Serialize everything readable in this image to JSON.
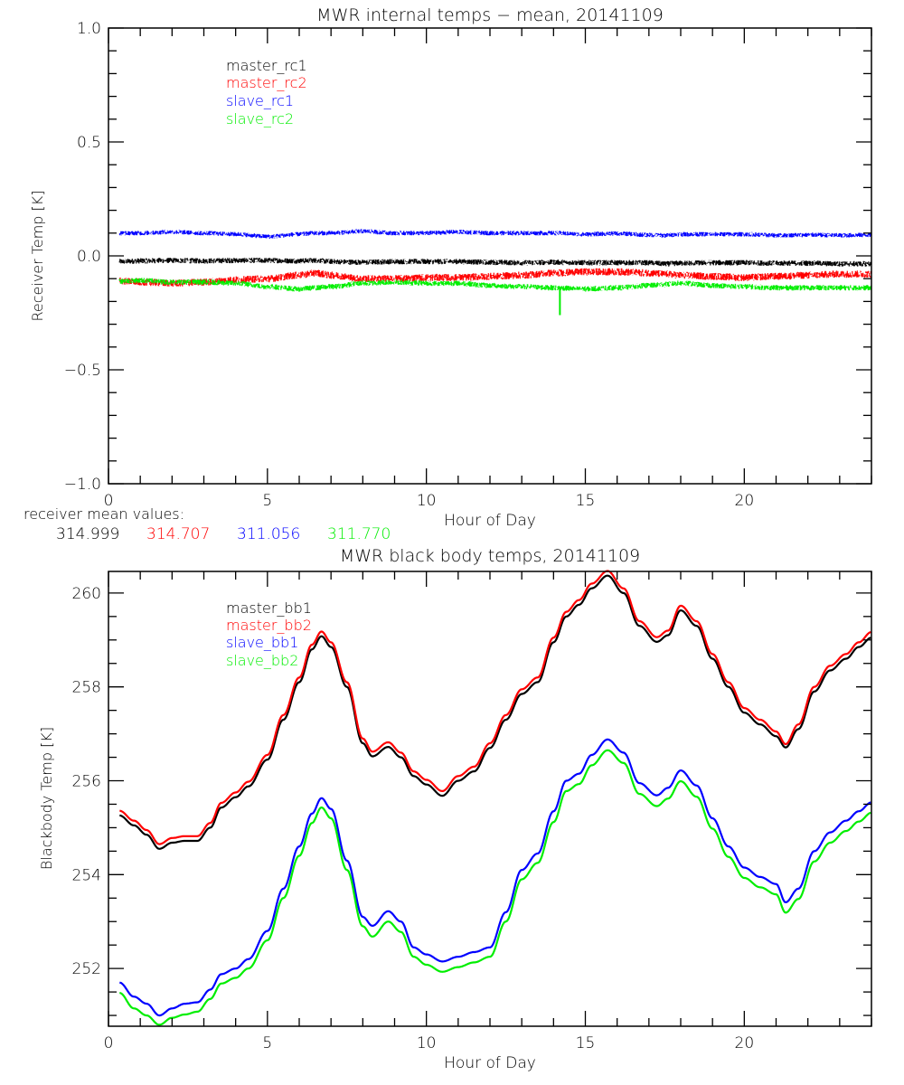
{
  "chart_data": [
    {
      "type": "line",
      "title": "MWR internal temps − mean, 20141109",
      "xlabel": "Hour of Day",
      "ylabel": "Receiver Temp [K]",
      "xlim": [
        0,
        24
      ],
      "ylim": [
        -1.0,
        1.0
      ],
      "x_ticks": [
        "0",
        "5",
        "10",
        "15",
        "20"
      ],
      "x_tick_values": [
        0,
        5,
        10,
        15,
        20
      ],
      "y_ticks": [
        "−1.0",
        "−0.5",
        "0.0",
        "0.5",
        "1.0"
      ],
      "y_tick_values": [
        -1.0,
        -0.5,
        0.0,
        0.5,
        1.0
      ],
      "x_minor_step": 1,
      "y_minor_step": 0.1,
      "grid": false,
      "legend_placement": "top-left",
      "x": [
        0.35,
        1,
        2,
        3,
        4,
        5,
        6,
        6.5,
        7,
        8,
        9,
        10,
        11,
        12,
        13,
        14,
        15,
        16,
        17,
        17.5,
        18,
        19,
        20,
        21,
        22,
        23,
        24
      ],
      "series": [
        {
          "name": "master_rc1",
          "color": "#000000",
          "noise": 0.012,
          "values": [
            -0.025,
            -0.022,
            -0.02,
            -0.022,
            -0.02,
            -0.02,
            -0.022,
            -0.02,
            -0.025,
            -0.028,
            -0.025,
            -0.025,
            -0.025,
            -0.028,
            -0.03,
            -0.028,
            -0.03,
            -0.03,
            -0.03,
            -0.035,
            -0.032,
            -0.03,
            -0.03,
            -0.032,
            -0.032,
            -0.035,
            -0.035
          ]
        },
        {
          "name": "master_rc2",
          "color": "#ff0000",
          "noise": 0.016,
          "values": [
            -0.11,
            -0.115,
            -0.12,
            -0.115,
            -0.105,
            -0.1,
            -0.085,
            -0.075,
            -0.085,
            -0.1,
            -0.1,
            -0.095,
            -0.095,
            -0.09,
            -0.085,
            -0.075,
            -0.07,
            -0.07,
            -0.075,
            -0.08,
            -0.085,
            -0.09,
            -0.095,
            -0.09,
            -0.085,
            -0.08,
            -0.08
          ]
        },
        {
          "name": "slave_rc1",
          "color": "#0000ff",
          "noise": 0.01,
          "values": [
            0.1,
            0.1,
            0.105,
            0.1,
            0.095,
            0.085,
            0.095,
            0.1,
            0.1,
            0.108,
            0.1,
            0.1,
            0.105,
            0.1,
            0.1,
            0.1,
            0.095,
            0.098,
            0.092,
            0.09,
            0.095,
            0.095,
            0.095,
            0.09,
            0.092,
            0.09,
            0.092
          ]
        },
        {
          "name": "slave_rc2",
          "color": "#00ff00",
          "noise": 0.012,
          "values": [
            -0.11,
            -0.108,
            -0.115,
            -0.115,
            -0.12,
            -0.135,
            -0.145,
            -0.14,
            -0.135,
            -0.12,
            -0.115,
            -0.12,
            -0.12,
            -0.13,
            -0.135,
            -0.14,
            -0.145,
            -0.14,
            -0.13,
            -0.125,
            -0.12,
            -0.13,
            -0.135,
            -0.14,
            -0.14,
            -0.14,
            -0.14
          ]
        }
      ],
      "spikes": [
        {
          "series": "slave_rc2",
          "x": 14.2,
          "y": -0.26
        }
      ],
      "annotation": {
        "label": "receiver mean values:",
        "values": [
          {
            "text": "314.999",
            "color": "#000000"
          },
          {
            "text": "314.707",
            "color": "#ff0000"
          },
          {
            "text": "311.056",
            "color": "#0000ff"
          },
          {
            "text": "311.770",
            "color": "#00ff00"
          }
        ]
      }
    },
    {
      "type": "line",
      "title": "MWR black body temps, 20141109",
      "xlabel": "Hour of Day",
      "ylabel": "Blackbody Temp [K]",
      "xlim": [
        0,
        24
      ],
      "ylim": [
        250.77,
        260.46
      ],
      "x_ticks": [
        "0",
        "5",
        "10",
        "15",
        "20"
      ],
      "x_tick_values": [
        0,
        5,
        10,
        15,
        20
      ],
      "y_ticks": [
        "252",
        "254",
        "256",
        "258",
        "260"
      ],
      "y_tick_values": [
        252,
        254,
        256,
        258,
        260
      ],
      "x_minor_step": 1,
      "y_minor_step": 0.5,
      "grid": false,
      "legend_placement": "top-left",
      "x": [
        0.35,
        0.8,
        1.2,
        1.6,
        2.0,
        2.4,
        2.8,
        3.2,
        3.55,
        4.0,
        4.4,
        5.0,
        5.5,
        6.0,
        6.4,
        6.7,
        7.0,
        7.5,
        8.0,
        8.3,
        8.8,
        9.2,
        9.6,
        10.0,
        10.5,
        11.0,
        11.5,
        12.0,
        12.5,
        13.0,
        13.5,
        14.0,
        14.4,
        14.8,
        15.2,
        15.7,
        16.2,
        16.7,
        17.25,
        17.6,
        18.0,
        18.5,
        19.0,
        19.5,
        20.0,
        20.5,
        21.0,
        21.3,
        21.7,
        22.2,
        22.7,
        23.2,
        23.6,
        24.0
      ],
      "series": [
        {
          "name": "master_bb1",
          "color": "#000000",
          "values": [
            255.26,
            255.05,
            254.85,
            254.55,
            254.68,
            254.72,
            254.72,
            255.0,
            255.43,
            255.65,
            255.88,
            256.45,
            257.3,
            258.1,
            258.8,
            259.08,
            258.85,
            258.0,
            256.8,
            256.52,
            256.72,
            256.5,
            256.1,
            255.92,
            255.68,
            256.0,
            256.2,
            256.7,
            257.3,
            257.85,
            258.1,
            258.95,
            259.5,
            259.75,
            260.1,
            260.37,
            260.0,
            259.3,
            258.96,
            259.1,
            259.63,
            259.3,
            258.6,
            258.0,
            257.45,
            257.2,
            256.95,
            256.71,
            257.1,
            257.9,
            258.35,
            258.6,
            258.85,
            259.05
          ]
        },
        {
          "name": "master_bb2",
          "color": "#ff0000",
          "values": [
            255.36,
            255.15,
            254.95,
            254.65,
            254.78,
            254.82,
            254.82,
            255.1,
            255.53,
            255.75,
            255.98,
            256.55,
            257.4,
            258.2,
            258.9,
            259.18,
            258.95,
            258.1,
            256.9,
            256.62,
            256.82,
            256.6,
            256.2,
            256.02,
            255.78,
            256.1,
            256.3,
            256.8,
            257.4,
            257.95,
            258.2,
            259.05,
            259.6,
            259.85,
            260.2,
            260.47,
            260.1,
            259.4,
            259.06,
            259.2,
            259.73,
            259.4,
            258.7,
            258.1,
            257.55,
            257.3,
            257.05,
            256.78,
            257.2,
            258.0,
            258.45,
            258.7,
            258.95,
            259.17
          ]
        },
        {
          "name": "slave_bb1",
          "color": "#0000ff",
          "values": [
            251.7,
            251.4,
            251.25,
            251.0,
            251.15,
            251.25,
            251.28,
            251.55,
            251.88,
            252.0,
            252.2,
            252.8,
            253.7,
            254.6,
            255.3,
            255.63,
            255.4,
            254.3,
            253.1,
            252.91,
            253.22,
            253.0,
            252.45,
            252.3,
            252.15,
            252.25,
            252.35,
            252.45,
            253.2,
            254.1,
            254.45,
            255.35,
            256.0,
            256.15,
            256.55,
            256.88,
            256.6,
            255.95,
            255.69,
            255.85,
            256.22,
            255.9,
            255.2,
            254.6,
            254.15,
            253.95,
            253.8,
            253.41,
            253.7,
            254.5,
            254.9,
            255.15,
            255.35,
            255.54
          ]
        },
        {
          "name": "slave_bb2",
          "color": "#00ff00",
          "values": [
            251.48,
            251.15,
            251.0,
            250.8,
            250.95,
            251.02,
            251.08,
            251.35,
            251.68,
            251.8,
            252.0,
            252.6,
            253.5,
            254.4,
            255.1,
            255.43,
            255.2,
            254.1,
            252.9,
            252.68,
            253.0,
            252.78,
            252.25,
            252.08,
            251.93,
            252.03,
            252.13,
            252.25,
            253.0,
            253.9,
            254.25,
            255.12,
            255.78,
            255.93,
            256.33,
            256.65,
            256.38,
            255.72,
            255.46,
            255.62,
            255.99,
            255.66,
            254.98,
            254.38,
            253.93,
            253.73,
            253.58,
            253.19,
            253.48,
            254.28,
            254.68,
            254.93,
            255.13,
            255.32
          ]
        }
      ]
    }
  ]
}
